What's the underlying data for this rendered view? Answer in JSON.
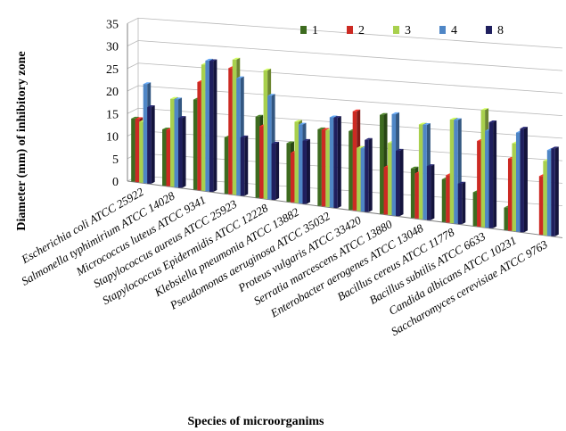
{
  "chart_data": {
    "type": "bar",
    "ylabel": "Diameter (mm) of inhibitory zone",
    "xlabel": "Species of microorganims",
    "ylim": [
      0,
      35
    ],
    "yticks": [
      0,
      5,
      10,
      15,
      20,
      25,
      30,
      35
    ],
    "grid": true,
    "legend_position": "top-right",
    "categories": [
      "Escherichia coli ATCC 25922",
      "Salmonella typhimirium ATCC 14028",
      "Micrococcus luteus ATCC 9341",
      "Stapylococcus aureus ATCC 25923",
      "Stapylococcus Epidermidis ATCC 12228",
      "Klebsiella pneumonia ATCC 13882",
      "Pseudomonas aeruginosa ATCC 35032",
      "Proteus vulgaris ATCC 33420",
      "Serratia marcescens ATCC 13880",
      "Enterobacter aerogenes ATCC 13048",
      "Bacillus cereus ATCC 11778",
      "Bacillus subtilis ATCC 6633",
      "Candida albicans ATCC 10231",
      "Saccharomyces cerevisiae ATCC 9763"
    ],
    "series": [
      {
        "name": "1",
        "color": "#3d6b1f",
        "values": [
          14,
          12.5,
          20,
          12.5,
          18,
          13,
          17,
          17.5,
          22,
          11,
          9.5,
          7.5,
          5,
          0
        ]
      },
      {
        "name": "2",
        "color": "#cc2a23",
        "values": [
          14,
          12.5,
          24,
          28,
          16,
          11,
          17,
          22,
          10.5,
          10,
          10.5,
          19,
          16,
          13
        ]
      },
      {
        "name": "3",
        "color": "#a8d04d",
        "values": [
          13.5,
          19.5,
          28,
          30,
          28.5,
          18,
          17,
          14,
          16,
          21,
          23,
          26,
          19.5,
          16.5
        ]
      },
      {
        "name": "4",
        "color": "#4f86c6",
        "values": [
          22,
          19.5,
          29,
          26,
          23,
          17.5,
          20,
          14,
          22.5,
          21,
          23,
          21.5,
          22,
          19
        ]
      },
      {
        "name": "8",
        "color": "#1f1f5e",
        "values": [
          17,
          15.5,
          29,
          13,
          12.5,
          14,
          20,
          16,
          14.5,
          12,
          9,
          23.5,
          23,
          19.5
        ]
      }
    ]
  }
}
